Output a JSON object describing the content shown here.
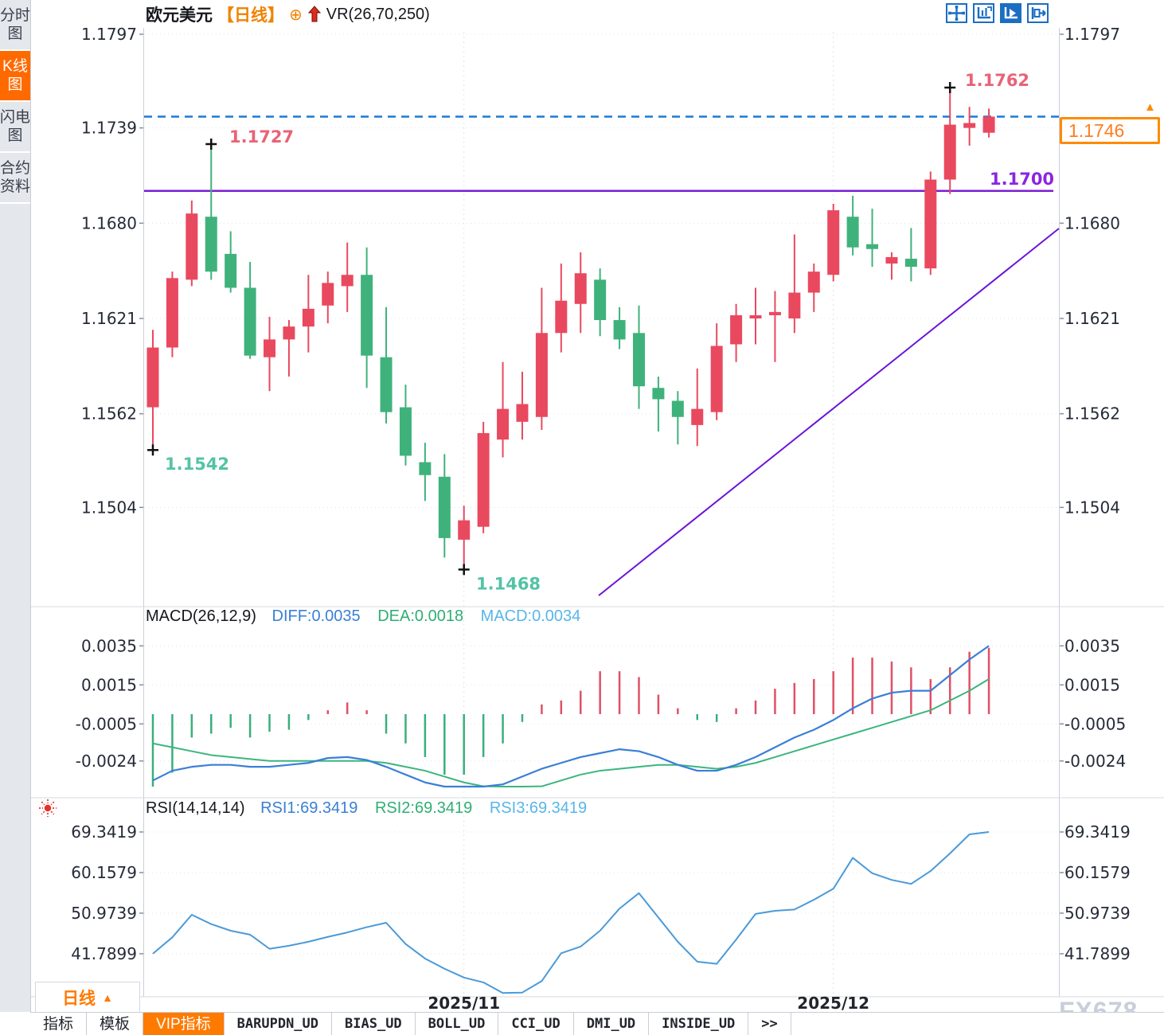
{
  "header": {
    "symbol": "欧元美元",
    "period_tag": "【日线】",
    "oplus_icon": "⊕",
    "indicator": "VR(26,70,250)"
  },
  "toolbar": {
    "icons": [
      {
        "name": "pan-crosshair-icon",
        "active": false
      },
      {
        "name": "axis-scale-icon",
        "active": false
      },
      {
        "name": "axis-play-icon",
        "active": true
      },
      {
        "name": "collapse-right-icon",
        "active": false
      }
    ]
  },
  "sidebar": {
    "items": [
      {
        "label": "分时图",
        "active": false
      },
      {
        "label": "K线图",
        "active": true
      },
      {
        "label": "闪电图",
        "active": false
      },
      {
        "label": "合约资料",
        "active": false
      }
    ]
  },
  "price_box": {
    "value": "1.1746",
    "marker": "▲"
  },
  "support_label": "1.1700",
  "axes": {
    "price_left": [
      "1.1797",
      "1.1739",
      "1.1680",
      "1.1621",
      "1.1562",
      "1.1504"
    ],
    "price_left_vals": [
      1.1797,
      1.1739,
      1.168,
      1.1621,
      1.1562,
      1.1504
    ],
    "price_right": [
      "1.1797",
      "1.1680",
      "1.1621",
      "1.1562",
      "1.1504"
    ],
    "price_right_vals": [
      1.1797,
      1.168,
      1.1621,
      1.1562,
      1.1504
    ],
    "macd_ticks": [
      "0.0035",
      "0.0015",
      "-0.0005",
      "-0.0024"
    ],
    "macd_tick_vals": [
      0.0035,
      0.0015,
      -0.0005,
      -0.0024
    ],
    "rsi_ticks": [
      "69.3419",
      "60.1579",
      "50.9739",
      "41.7899"
    ],
    "rsi_tick_vals": [
      69.3419,
      60.1579,
      50.9739,
      41.7899
    ],
    "x_labels": [
      "2025/11",
      "2025/12"
    ]
  },
  "macd_header": {
    "title": "MACD(26,12,9)",
    "diff_label": "DIFF:0.0035",
    "dea_label": "DEA:0.0018",
    "macd_label": "MACD:0.0034"
  },
  "rsi_header": {
    "title": "RSI(14,14,14)",
    "rsi1_label": "RSI1:69.3419",
    "rsi2_label": "RSI2:69.3419",
    "rsi3_label": "RSI3:69.3419"
  },
  "bottom": {
    "period_button": "日线",
    "period_arrow": "▲",
    "tabs": [
      {
        "label": "指标",
        "active": false,
        "mono": false
      },
      {
        "label": "模板",
        "active": false,
        "mono": false
      },
      {
        "label": "VIP指标",
        "active": true,
        "mono": false
      },
      {
        "label": "BARUPDN_UD",
        "active": false,
        "mono": true
      },
      {
        "label": "BIAS_UD",
        "active": false,
        "mono": true
      },
      {
        "label": "BOLL_UD",
        "active": false,
        "mono": true
      },
      {
        "label": "CCI_UD",
        "active": false,
        "mono": true
      },
      {
        "label": "DMI_UD",
        "active": false,
        "mono": true
      },
      {
        "label": "INSIDE_UD",
        "active": false,
        "mono": true
      },
      {
        "label": ">>",
        "active": false,
        "mono": true
      }
    ]
  },
  "watermark": "FX678",
  "colors": {
    "up": "#e9495f",
    "down": "#3fb27b",
    "macd_up_bar": "#e05066",
    "macd_down_bar": "#3aaf7a",
    "diff_line": "#3a7fd6",
    "dea_line": "#3cb57e",
    "rsi_line": "#4a9ad9",
    "current_price_line": "#1d7ad4",
    "support_line": "#7a1ed2",
    "trend_line": "#6a14d8",
    "annotation_high": "#e86376",
    "annotation_low": "#53c3a4",
    "accent_orange": "#ff7a00",
    "axis_text": "#252a38",
    "grid": "#dfe3ea"
  },
  "chart_data": {
    "type": "candlestick",
    "title": "欧元美元 日线 (EUR/USD daily) with VR(26,70,250), MACD(26,12,9), RSI(14,14,14)",
    "x_labels": [
      "2025/11",
      "2025/12"
    ],
    "x_label_candle_index": [
      16,
      35
    ],
    "ylim": [
      1.1445,
      1.18
    ],
    "y_ticks": [
      1.1797,
      1.1739,
      1.168,
      1.1621,
      1.1562,
      1.1504
    ],
    "current_price": 1.1746,
    "support_line": 1.17,
    "annotations": [
      {
        "text": "1.1762",
        "type": "swing-high",
        "candle_index": 41
      },
      {
        "text": "1.1727",
        "type": "swing-high",
        "candle_index": 3
      },
      {
        "text": "1.1542",
        "type": "swing-low",
        "candle_index": 0
      },
      {
        "text": "1.1468",
        "type": "swing-low",
        "candle_index": 16
      },
      {
        "text": "1.1700",
        "type": "support-line-label"
      },
      {
        "text": "1.1746",
        "type": "current-price-label"
      }
    ],
    "trendline": {
      "from_candle": 23,
      "from_price": 1.1469,
      "to_candle": 46,
      "to_price": 1.168,
      "comment": "ascending purple support trendline under the November–December lows"
    },
    "candles": [
      [
        1.1566,
        1.1614,
        1.1542,
        1.1603
      ],
      [
        1.1603,
        1.165,
        1.1597,
        1.1646
      ],
      [
        1.1645,
        1.1694,
        1.1641,
        1.1686
      ],
      [
        1.1684,
        1.1727,
        1.1645,
        1.165
      ],
      [
        1.1661,
        1.1675,
        1.1637,
        1.164
      ],
      [
        1.164,
        1.1656,
        1.1596,
        1.1598
      ],
      [
        1.1597,
        1.1622,
        1.1576,
        1.1608
      ],
      [
        1.1608,
        1.162,
        1.1585,
        1.1616
      ],
      [
        1.1616,
        1.1648,
        1.16,
        1.1627
      ],
      [
        1.1629,
        1.165,
        1.1618,
        1.1643
      ],
      [
        1.1641,
        1.1668,
        1.1625,
        1.1648
      ],
      [
        1.1648,
        1.1665,
        1.1578,
        1.1598
      ],
      [
        1.1597,
        1.1628,
        1.1556,
        1.1563
      ],
      [
        1.1566,
        1.158,
        1.153,
        1.1536
      ],
      [
        1.1532,
        1.1544,
        1.1508,
        1.1524
      ],
      [
        1.1523,
        1.1537,
        1.1473,
        1.1485
      ],
      [
        1.1484,
        1.1505,
        1.1468,
        1.1496
      ],
      [
        1.1492,
        1.1557,
        1.1488,
        1.155
      ],
      [
        1.1546,
        1.1594,
        1.1535,
        1.1565
      ],
      [
        1.1557,
        1.1588,
        1.1546,
        1.1568
      ],
      [
        1.156,
        1.164,
        1.1552,
        1.1612
      ],
      [
        1.1612,
        1.1655,
        1.16,
        1.1632
      ],
      [
        1.163,
        1.1662,
        1.1612,
        1.1649
      ],
      [
        1.1645,
        1.1652,
        1.161,
        1.162
      ],
      [
        1.162,
        1.1628,
        1.1602,
        1.1608
      ],
      [
        1.1612,
        1.1629,
        1.1565,
        1.1579
      ],
      [
        1.1578,
        1.1585,
        1.1551,
        1.1571
      ],
      [
        1.157,
        1.1576,
        1.1543,
        1.156
      ],
      [
        1.1555,
        1.159,
        1.1542,
        1.1565
      ],
      [
        1.1563,
        1.1618,
        1.1558,
        1.1604
      ],
      [
        1.1605,
        1.163,
        1.1594,
        1.1623
      ],
      [
        1.1621,
        1.164,
        1.1605,
        1.1623
      ],
      [
        1.1623,
        1.1638,
        1.1594,
        1.1625
      ],
      [
        1.1621,
        1.1673,
        1.1612,
        1.1637
      ],
      [
        1.1637,
        1.1655,
        1.1625,
        1.165
      ],
      [
        1.1648,
        1.1692,
        1.1644,
        1.1688
      ],
      [
        1.1684,
        1.1697,
        1.166,
        1.1665
      ],
      [
        1.1667,
        1.1689,
        1.1653,
        1.1664
      ],
      [
        1.1655,
        1.1662,
        1.1645,
        1.1659
      ],
      [
        1.1658,
        1.1677,
        1.1644,
        1.1653
      ],
      [
        1.1652,
        1.1712,
        1.1648,
        1.1707
      ],
      [
        1.1707,
        1.1762,
        1.1698,
        1.1741
      ],
      [
        1.1739,
        1.1752,
        1.1728,
        1.1742
      ],
      [
        1.1736,
        1.1751,
        1.1733,
        1.1746
      ]
    ],
    "macd": {
      "params": "MACD(26,12,9)",
      "diff": 0.0035,
      "dea": 0.0018,
      "macd": 0.0034,
      "y_ticks": [
        0.0035,
        0.0015,
        -0.0005,
        -0.0024
      ],
      "hist": [
        -0.0041,
        -0.003,
        -0.0012,
        -0.001,
        -0.0007,
        -0.0012,
        -0.0009,
        -0.0008,
        -0.0003,
        0.0002,
        0.0006,
        0.0002,
        -0.001,
        -0.0015,
        -0.0022,
        -0.0031,
        -0.0031,
        -0.0022,
        -0.0015,
        -0.0004,
        0.0005,
        0.0007,
        0.0012,
        0.0022,
        0.0022,
        0.0019,
        0.001,
        0.0003,
        -0.0003,
        -0.0004,
        0.0003,
        0.0007,
        0.0013,
        0.0016,
        0.0018,
        0.0022,
        0.0029,
        0.0029,
        0.0027,
        0.0024,
        0.0018,
        0.0024,
        0.0032,
        0.0034
      ],
      "diff_series": [
        -0.0034,
        -0.0029,
        -0.0027,
        -0.0026,
        -0.0026,
        -0.0027,
        -0.0027,
        -0.0026,
        -0.0025,
        -0.00225,
        -0.0022,
        -0.00235,
        -0.0027,
        -0.0031,
        -0.0035,
        -0.0038,
        -0.004,
        -0.0039,
        -0.0036,
        -0.0032,
        -0.0028,
        -0.0025,
        -0.0022,
        -0.002,
        -0.0018,
        -0.0019,
        -0.0022,
        -0.0026,
        -0.0029,
        -0.0029,
        -0.0026,
        -0.0022,
        -0.0017,
        -0.0012,
        -0.0008,
        -0.0003,
        0.0003,
        0.0008,
        0.0011,
        0.0012,
        0.0012,
        0.002,
        0.0028,
        0.0035
      ],
      "dea_series": [
        -0.0015,
        -0.0017,
        -0.0019,
        -0.0021,
        -0.0022,
        -0.0023,
        -0.0024,
        -0.0024,
        -0.0024,
        -0.0024,
        -0.0024,
        -0.0024,
        -0.0025,
        -0.0027,
        -0.0029,
        -0.0032,
        -0.0035,
        -0.0037,
        -0.0039,
        -0.0039,
        -0.0037,
        -0.0034,
        -0.0031,
        -0.0029,
        -0.0028,
        -0.0027,
        -0.0026,
        -0.0026,
        -0.0027,
        -0.0028,
        -0.0027,
        -0.0025,
        -0.0022,
        -0.0019,
        -0.0016,
        -0.0013,
        -0.001,
        -0.0007,
        -0.0004,
        -0.0001,
        0.0002,
        0.0007,
        0.0012,
        0.0018
      ]
    },
    "rsi": {
      "params": "RSI(14,14,14)",
      "rsi1": 69.3419,
      "rsi2": 69.3419,
      "rsi3": 69.3419,
      "y_ticks": [
        69.3419,
        60.1579,
        50.9739,
        41.7899
      ],
      "series": [
        41.8,
        45.5,
        50.6,
        48.5,
        47.0,
        46.1,
        42.9,
        43.6,
        44.5,
        45.6,
        46.6,
        47.8,
        48.8,
        44.0,
        40.7,
        38.4,
        36.4,
        35.3,
        32.9,
        33.0,
        35.6,
        41.9,
        43.4,
        47.0,
        52.0,
        55.5,
        50.0,
        44.5,
        40.0,
        39.5,
        45.0,
        50.8,
        51.5,
        51.8,
        54.0,
        56.5,
        63.5,
        60.0,
        58.5,
        57.6,
        60.5,
        64.5,
        68.8,
        69.34
      ]
    }
  }
}
